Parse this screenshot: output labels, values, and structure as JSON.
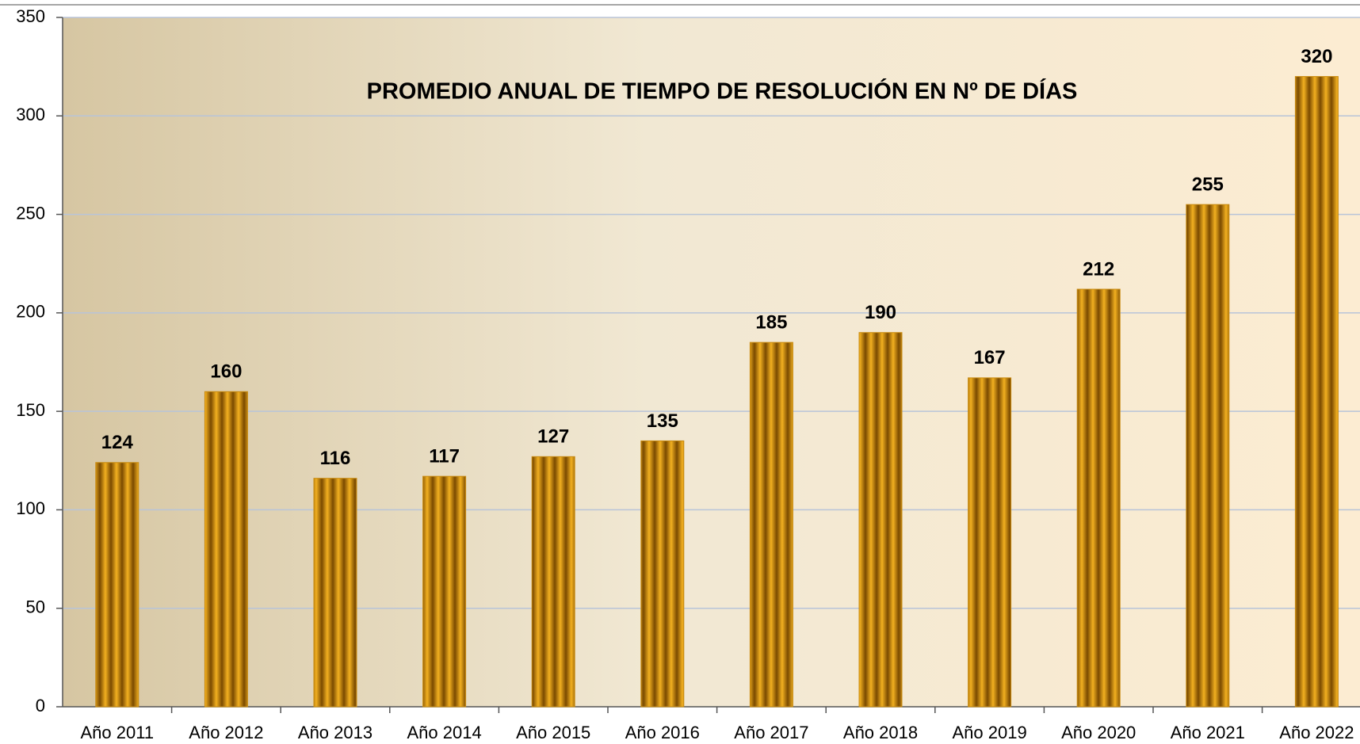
{
  "chart_data": {
    "type": "bar",
    "title": "PROMEDIO ANUAL DE TIEMPO DE RESOLUCIÓN EN Nº DE DÍAS",
    "categories": [
      "Año 2011",
      "Año 2012",
      "Año 2013",
      "Año 2014",
      "Año 2015",
      "Año 2016",
      "Año 2017",
      "Año 2018",
      "Año 2019",
      "Año 2020",
      "Año 2021",
      "Año 2022"
    ],
    "values": [
      124,
      160,
      116,
      117,
      127,
      135,
      185,
      190,
      167,
      212,
      255,
      320
    ],
    "color": "#c88a10",
    "ylim": [
      0,
      350
    ],
    "yticks": [
      0,
      50,
      100,
      150,
      200,
      250,
      300,
      350
    ],
    "grid": true
  }
}
